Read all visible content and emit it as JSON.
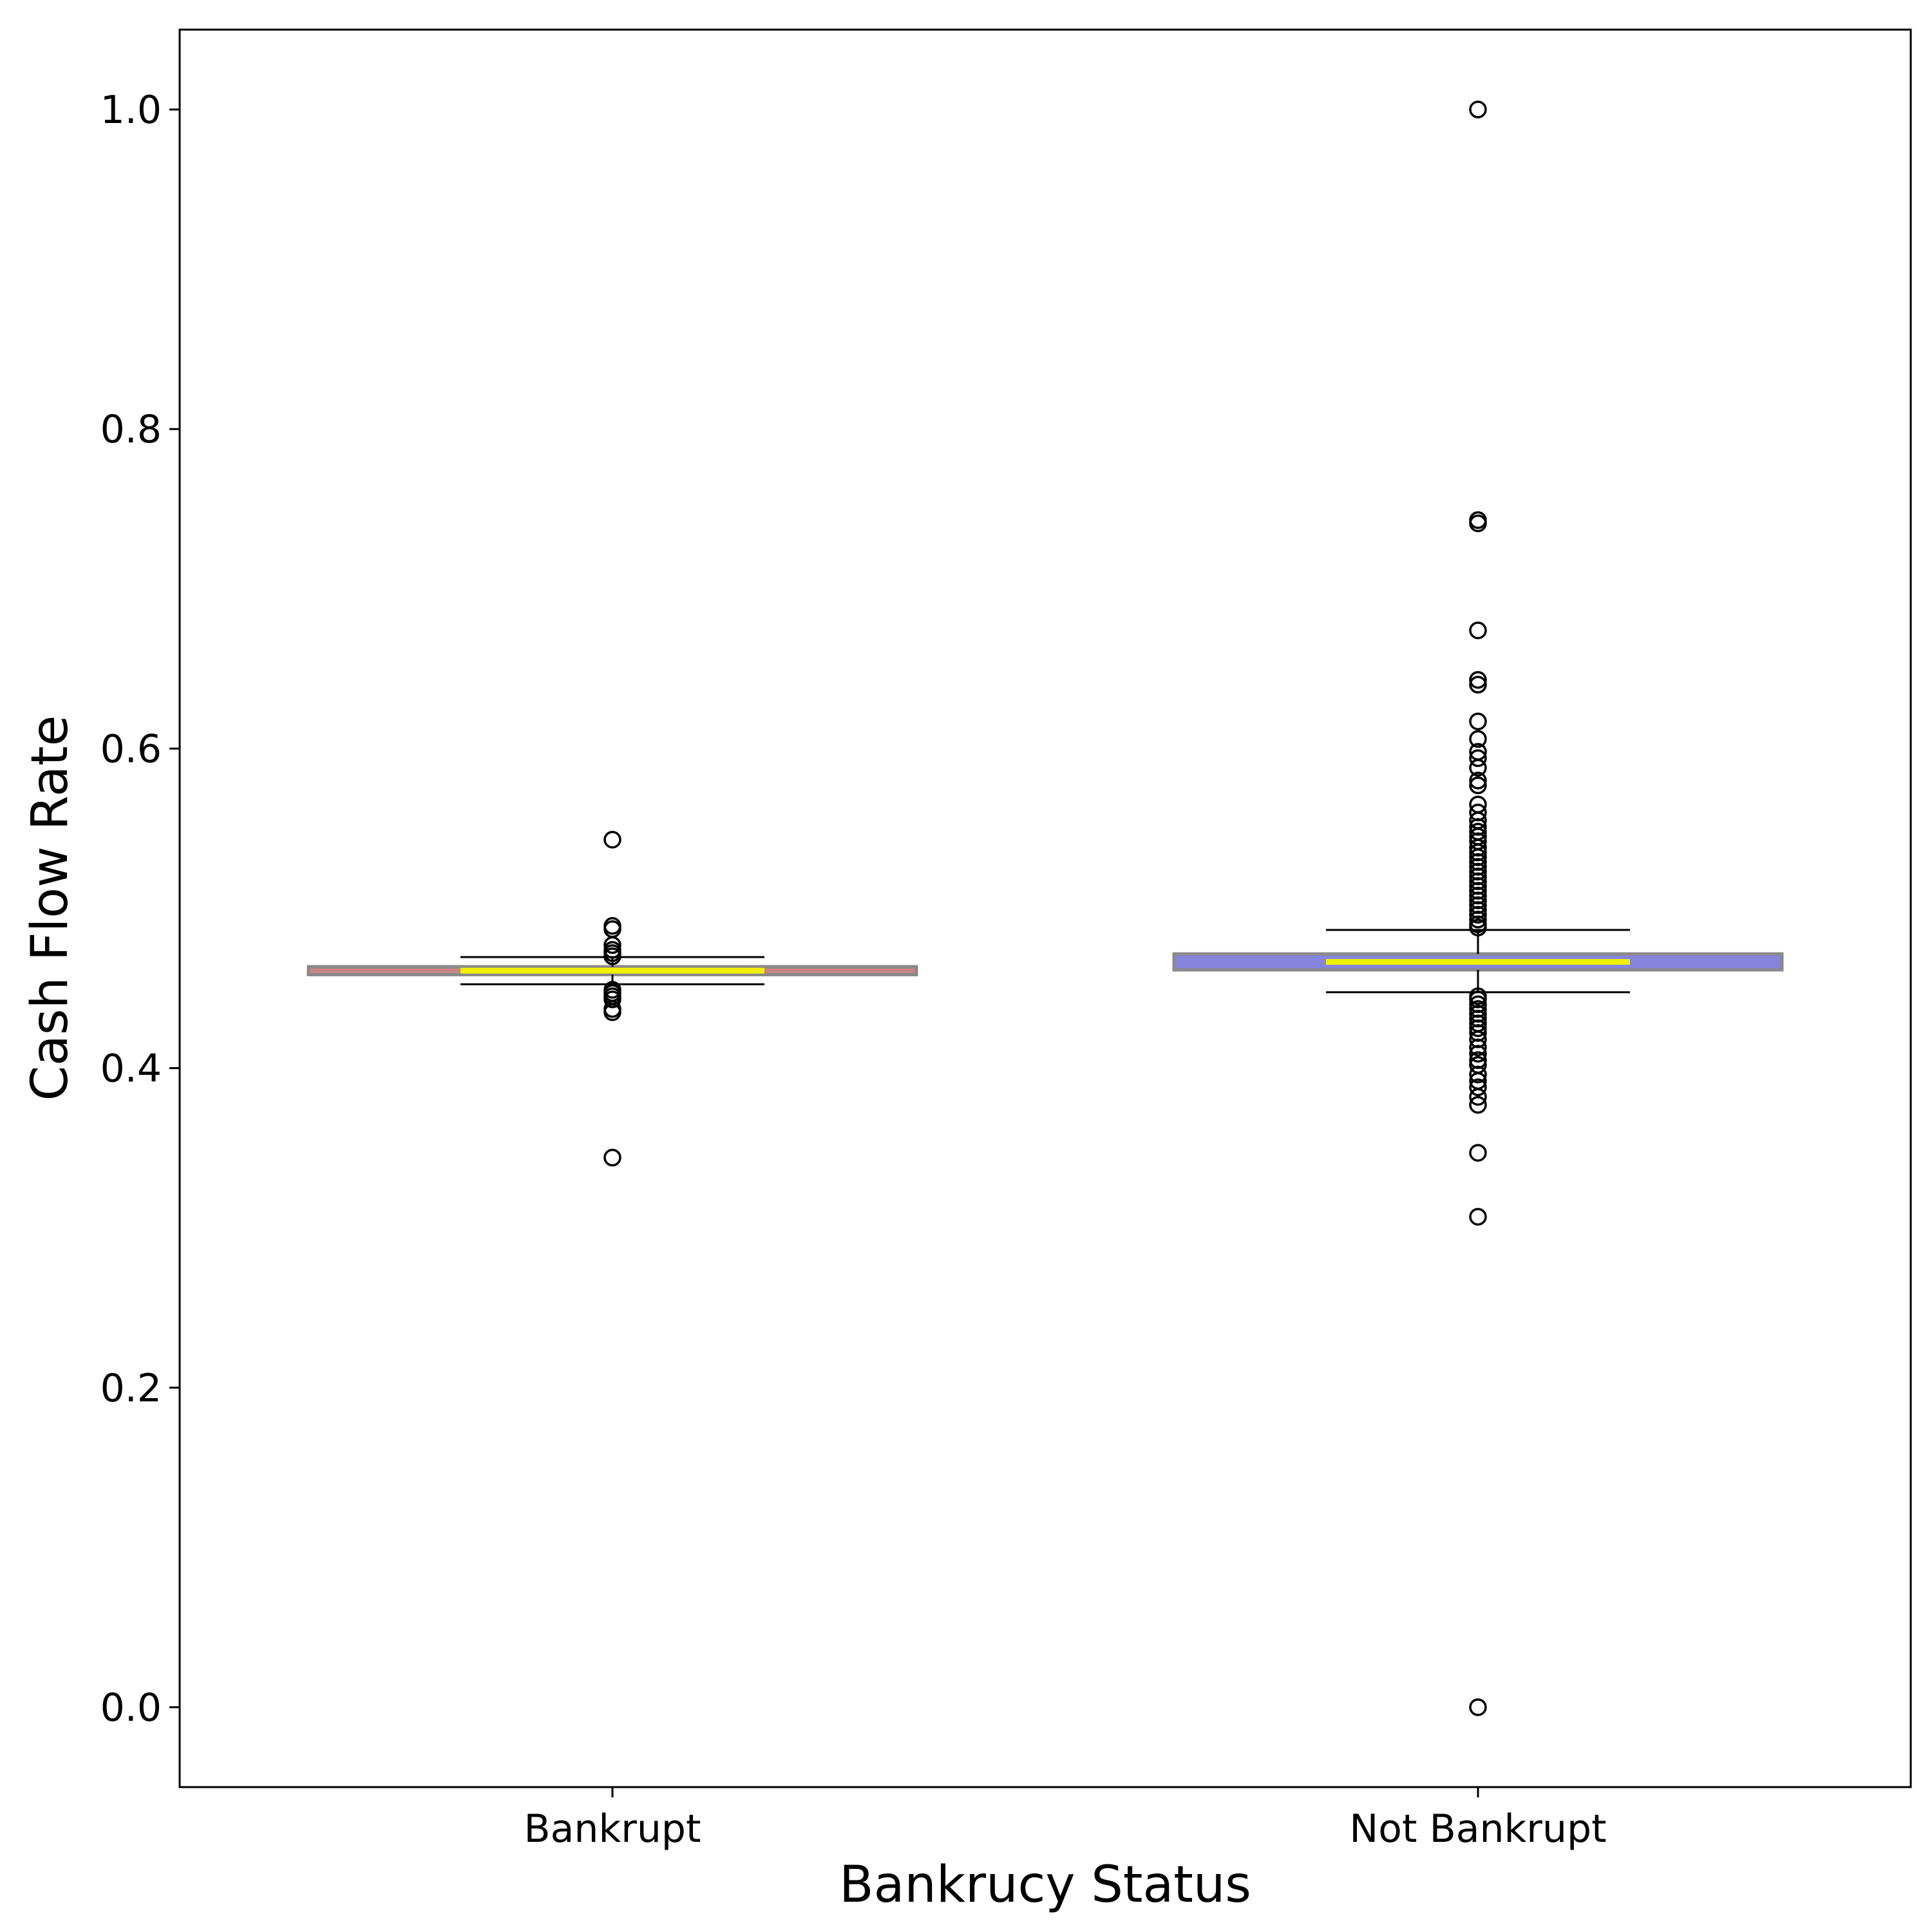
{
  "chart_data": {
    "type": "box",
    "title": "",
    "xlabel": "Bankrucy Status",
    "ylabel": "Cash Flow Rate",
    "ylim": [
      -0.05,
      1.05
    ],
    "yticks": [
      "0.0",
      "0.2",
      "0.4",
      "0.6",
      "0.8",
      "1.0"
    ],
    "grid": false,
    "categories": [
      "Bankrupt",
      "Not Bankrupt"
    ],
    "boxes": [
      {
        "category": "Bankrupt",
        "box_color": "#c07070",
        "q1": 0.4585,
        "median": 0.461,
        "q3": 0.4635,
        "whisker_low": 0.4525,
        "whisker_high": 0.4695,
        "outliers": [
          0.543,
          0.489,
          0.487,
          0.477,
          0.474,
          0.472,
          0.47,
          0.449,
          0.447,
          0.445,
          0.443,
          0.437,
          0.435,
          0.344
        ]
      },
      {
        "category": "Not Bankrupt",
        "box_color": "#7070d8",
        "q1": 0.4615,
        "median": 0.4665,
        "q3": 0.4715,
        "whisker_low": 0.4475,
        "whisker_high": 0.4865,
        "outliers": [
          1.0,
          0.743,
          0.741,
          0.674,
          0.643,
          0.64,
          0.617,
          0.606,
          0.598,
          0.594,
          0.588,
          0.58,
          0.577,
          0.565,
          0.56,
          0.555,
          0.551,
          0.548,
          0.545,
          0.542,
          0.538,
          0.535,
          0.532,
          0.529,
          0.526,
          0.523,
          0.52,
          0.517,
          0.514,
          0.511,
          0.508,
          0.505,
          0.502,
          0.499,
          0.496,
          0.493,
          0.49,
          0.488,
          0.445,
          0.443,
          0.44,
          0.437,
          0.434,
          0.431,
          0.428,
          0.425,
          0.422,
          0.418,
          0.413,
          0.409,
          0.405,
          0.402,
          0.396,
          0.392,
          0.388,
          0.382,
          0.377,
          0.347,
          0.307,
          0.0
        ]
      }
    ]
  }
}
